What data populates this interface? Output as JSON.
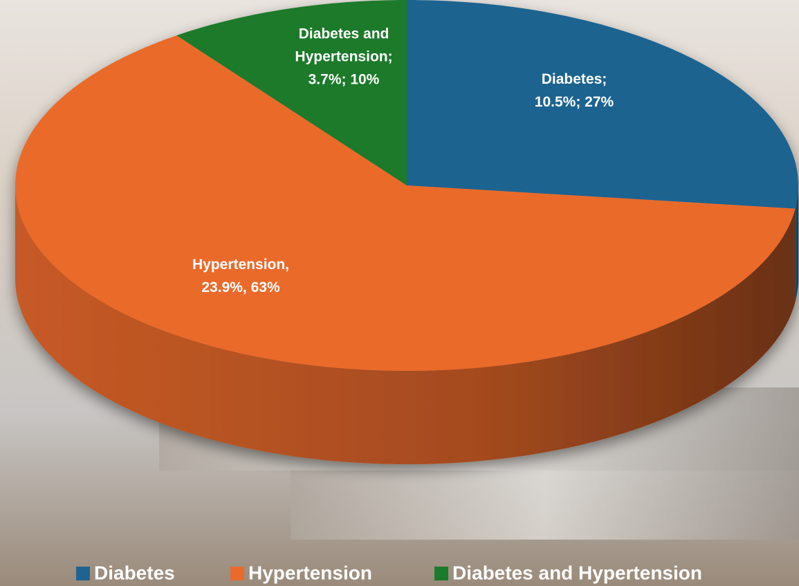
{
  "chart_data": {
    "type": "pie",
    "three_d": true,
    "categories": [
      "Diabetes",
      "Hypertension",
      "Diabetes and Hypertension"
    ],
    "values": [
      27,
      63,
      10
    ],
    "value_labels": [
      [
        "Diabetes;",
        "10.5%; 27%"
      ],
      [
        "Hypertension,",
        "23.9%, 63%"
      ],
      [
        "Diabetes and",
        "Hypertension;",
        "3.7%; 10%"
      ]
    ],
    "colors": [
      "#1f6490",
      "#ea6a2c",
      "#1c7a2c"
    ],
    "legend": "bottom"
  }
}
